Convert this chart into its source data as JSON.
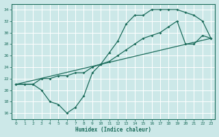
{
  "xlabel": "Humidex (Indice chaleur)",
  "ylabel": "",
  "xlim": [
    -0.5,
    23.5
  ],
  "ylim": [
    15,
    35
  ],
  "xticks": [
    0,
    1,
    2,
    3,
    4,
    5,
    6,
    7,
    8,
    9,
    10,
    11,
    12,
    13,
    14,
    15,
    16,
    17,
    18,
    19,
    20,
    21,
    22,
    23
  ],
  "yticks": [
    16,
    18,
    20,
    22,
    24,
    26,
    28,
    30,
    32,
    34
  ],
  "bg_color": "#cce8e8",
  "line_color": "#1a6b5a",
  "line1_x": [
    0,
    1,
    2,
    3,
    4,
    5,
    6,
    7,
    8,
    9,
    10,
    11,
    12,
    13,
    14,
    15,
    16,
    17,
    18,
    19,
    20,
    21,
    22,
    23
  ],
  "line1_y": [
    21,
    21,
    21,
    20,
    18,
    17.5,
    16,
    17,
    19,
    23,
    24.5,
    26.5,
    28.5,
    31.5,
    33,
    33,
    34,
    34,
    34,
    34,
    33.5,
    33,
    32,
    29
  ],
  "line2_x": [
    0,
    1,
    2,
    3,
    4,
    5,
    6,
    7,
    8,
    9,
    10,
    11,
    12,
    13,
    14,
    15,
    16,
    17,
    18,
    19,
    20,
    21,
    22,
    23
  ],
  "line2_y": [
    21,
    21,
    21,
    22,
    22,
    22.5,
    22.5,
    23,
    23,
    24,
    24.5,
    25,
    26,
    27,
    28,
    29,
    29.5,
    30,
    31,
    32,
    28,
    28,
    29.5,
    29
  ],
  "line3_x": [
    0,
    23
  ],
  "line3_y": [
    21,
    29
  ]
}
